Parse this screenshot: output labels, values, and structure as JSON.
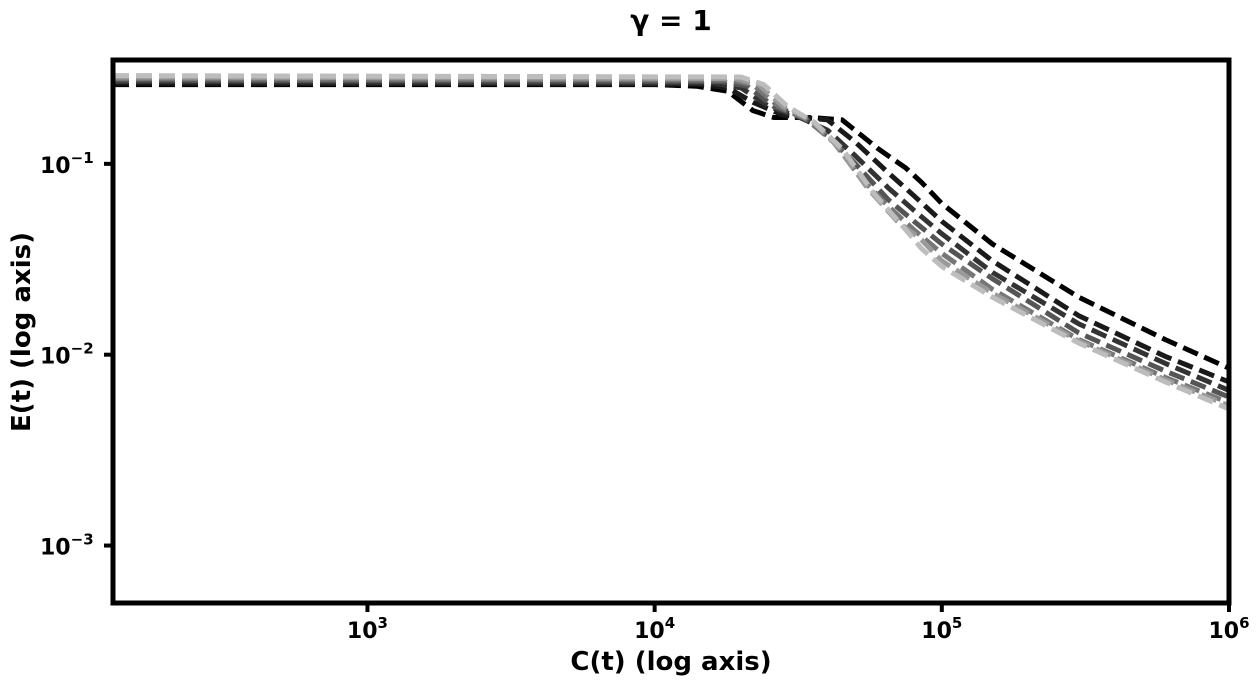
{
  "chart_data": {
    "type": "line",
    "title": "γ = 1",
    "xlabel": "C(t) (log axis)",
    "ylabel": "E(t) (log axis)",
    "xscale": "log",
    "yscale": "log",
    "xlim": [
      130,
      1000000
    ],
    "ylim": [
      0.0005,
      0.35
    ],
    "grid": false,
    "line_style": "dashed",
    "x_ticks": [
      {
        "value": 1000,
        "base": "10",
        "exp": "3"
      },
      {
        "value": 10000,
        "base": "10",
        "exp": "4"
      },
      {
        "value": 100000,
        "base": "10",
        "exp": "5"
      },
      {
        "value": 1000000,
        "base": "10",
        "exp": "6"
      }
    ],
    "y_ticks": [
      {
        "value": 0.1,
        "base": "10",
        "exp": "−1"
      },
      {
        "value": 0.01,
        "base": "10",
        "exp": "−2"
      },
      {
        "value": 0.001,
        "base": "10",
        "exp": "−3"
      }
    ],
    "series": [
      {
        "color": "#000000",
        "points": [
          [
            130,
            0.26
          ],
          [
            10000,
            0.26
          ],
          [
            14000,
            0.255
          ],
          [
            18000,
            0.24
          ],
          [
            22000,
            0.19
          ],
          [
            26000,
            0.175
          ],
          [
            35000,
            0.175
          ],
          [
            45000,
            0.17
          ],
          [
            60000,
            0.12
          ],
          [
            75000,
            0.095
          ],
          [
            85000,
            0.08
          ],
          [
            100000,
            0.062
          ],
          [
            150000,
            0.038
          ],
          [
            300000,
            0.02
          ],
          [
            600000,
            0.012
          ],
          [
            1000000,
            0.0085
          ]
        ]
      },
      {
        "color": "#1a1a1a",
        "points": [
          [
            130,
            0.265
          ],
          [
            14000,
            0.262
          ],
          [
            18000,
            0.25
          ],
          [
            22000,
            0.21
          ],
          [
            28000,
            0.18
          ],
          [
            40000,
            0.17
          ],
          [
            50000,
            0.13
          ],
          [
            65000,
            0.09
          ],
          [
            80000,
            0.068
          ],
          [
            100000,
            0.05
          ],
          [
            150000,
            0.031
          ],
          [
            300000,
            0.016
          ],
          [
            600000,
            0.0098
          ],
          [
            1000000,
            0.0072
          ]
        ]
      },
      {
        "color": "#333333",
        "points": [
          [
            130,
            0.27
          ],
          [
            16000,
            0.265
          ],
          [
            20000,
            0.25
          ],
          [
            25000,
            0.2
          ],
          [
            32000,
            0.175
          ],
          [
            40000,
            0.15
          ],
          [
            50000,
            0.11
          ],
          [
            65000,
            0.075
          ],
          [
            80000,
            0.057
          ],
          [
            100000,
            0.043
          ],
          [
            150000,
            0.027
          ],
          [
            300000,
            0.0145
          ],
          [
            600000,
            0.009
          ],
          [
            1000000,
            0.0065
          ]
        ]
      },
      {
        "color": "#555555",
        "points": [
          [
            130,
            0.275
          ],
          [
            17000,
            0.27
          ],
          [
            21000,
            0.255
          ],
          [
            26000,
            0.2
          ],
          [
            33000,
            0.175
          ],
          [
            40000,
            0.14
          ],
          [
            50000,
            0.1
          ],
          [
            65000,
            0.065
          ],
          [
            80000,
            0.05
          ],
          [
            100000,
            0.038
          ],
          [
            150000,
            0.025
          ],
          [
            300000,
            0.013
          ],
          [
            600000,
            0.0082
          ],
          [
            1000000,
            0.006
          ]
        ]
      },
      {
        "color": "#777777",
        "points": [
          [
            130,
            0.28
          ],
          [
            18000,
            0.275
          ],
          [
            22000,
            0.26
          ],
          [
            27000,
            0.2
          ],
          [
            34000,
            0.17
          ],
          [
            42000,
            0.13
          ],
          [
            52000,
            0.085
          ],
          [
            65000,
            0.06
          ],
          [
            80000,
            0.045
          ],
          [
            100000,
            0.034
          ],
          [
            150000,
            0.022
          ],
          [
            300000,
            0.012
          ],
          [
            600000,
            0.0076
          ],
          [
            1000000,
            0.0056
          ]
        ]
      },
      {
        "color": "#9a9a9a",
        "points": [
          [
            130,
            0.285
          ],
          [
            19000,
            0.28
          ],
          [
            23000,
            0.26
          ],
          [
            28000,
            0.2
          ],
          [
            35000,
            0.17
          ],
          [
            43000,
            0.125
          ],
          [
            55000,
            0.075
          ],
          [
            70000,
            0.05
          ],
          [
            85000,
            0.04
          ],
          [
            100000,
            0.031
          ],
          [
            150000,
            0.021
          ],
          [
            300000,
            0.0118
          ],
          [
            600000,
            0.0074
          ],
          [
            1000000,
            0.0054
          ]
        ]
      },
      {
        "color": "#bdbdbd",
        "points": [
          [
            130,
            0.29
          ],
          [
            20000,
            0.285
          ],
          [
            24000,
            0.26
          ],
          [
            29000,
            0.2
          ],
          [
            36000,
            0.165
          ],
          [
            45000,
            0.12
          ],
          [
            58000,
            0.07
          ],
          [
            75000,
            0.045
          ],
          [
            85000,
            0.036
          ],
          [
            100000,
            0.029
          ],
          [
            150000,
            0.02
          ],
          [
            300000,
            0.0115
          ],
          [
            600000,
            0.0072
          ],
          [
            1000000,
            0.0052
          ]
        ]
      }
    ]
  }
}
